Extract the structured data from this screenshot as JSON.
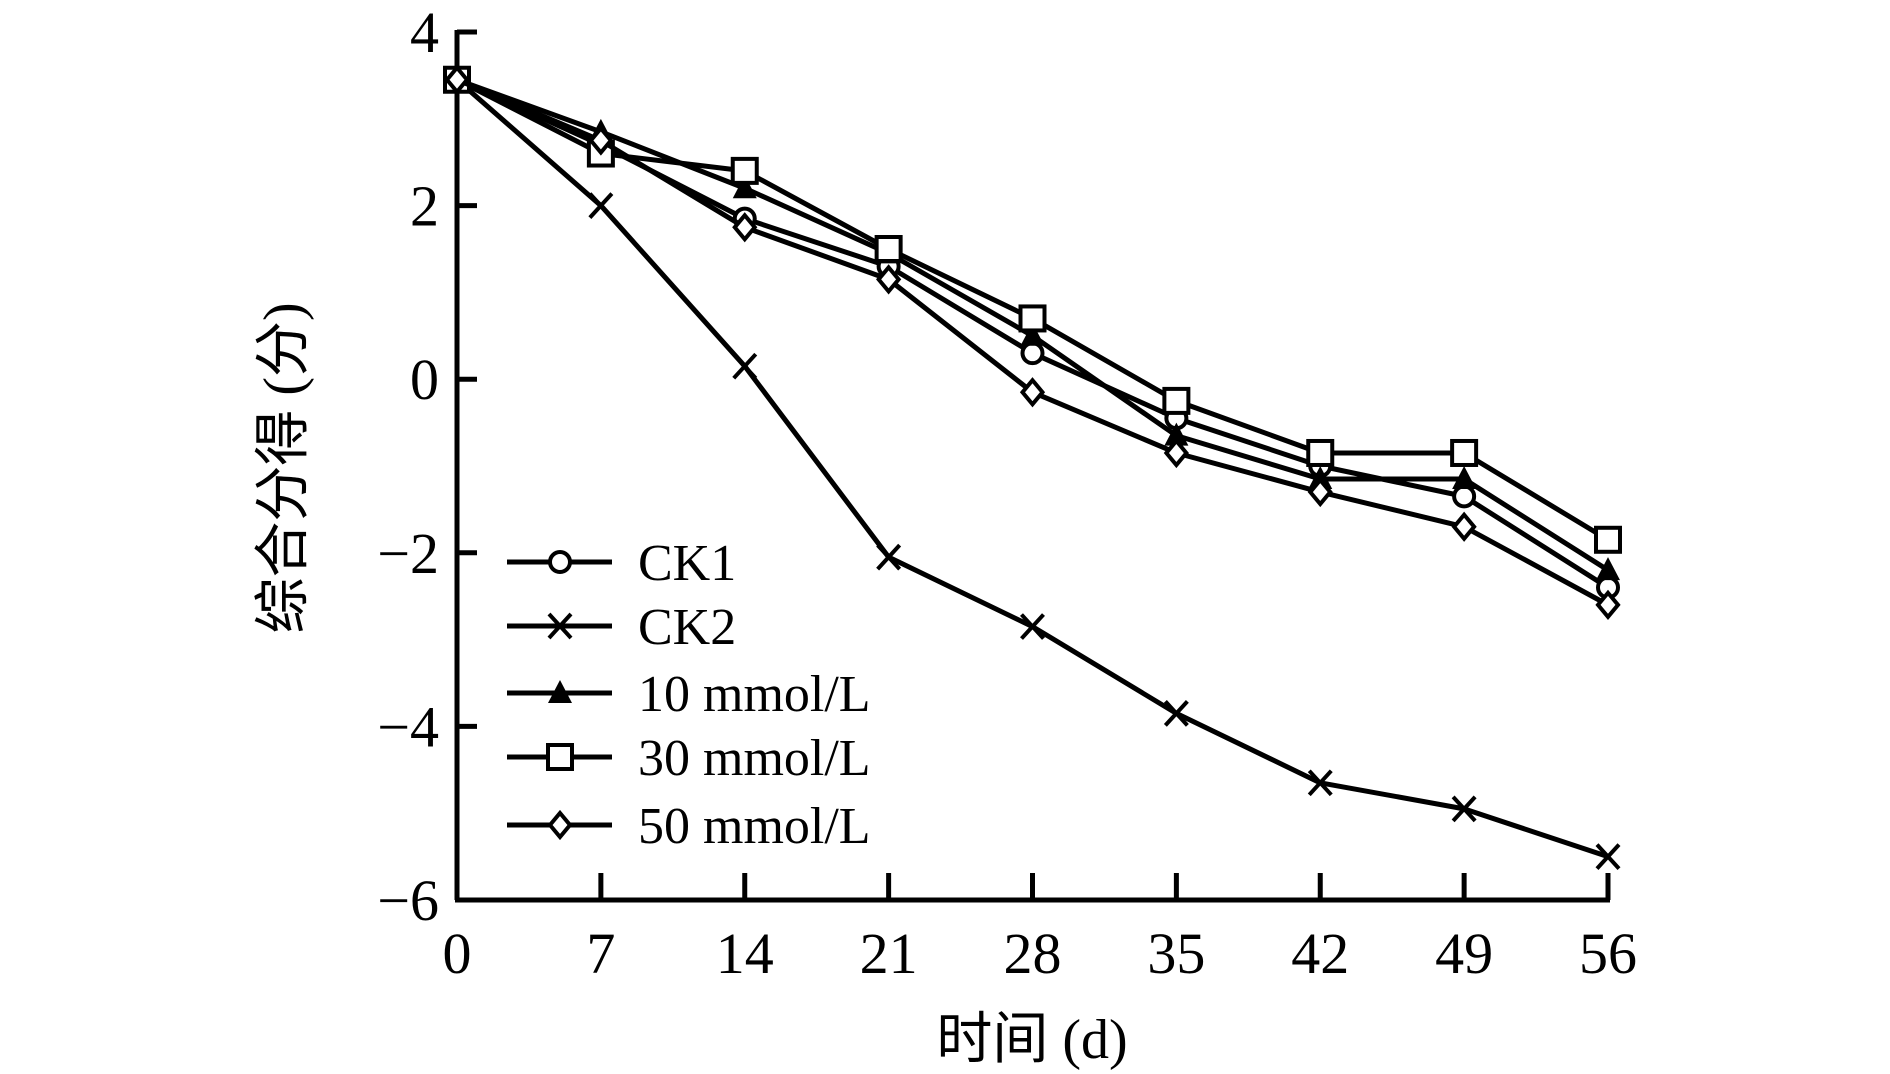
{
  "chart_data": {
    "type": "line",
    "title": "",
    "xlabel": "时间 (d)",
    "ylabel": "综合分得 (分)",
    "x": [
      0,
      7,
      14,
      21,
      28,
      35,
      42,
      49,
      56
    ],
    "xlim": [
      0,
      56
    ],
    "ylim": [
      -6,
      4
    ],
    "xticks": [
      0,
      7,
      14,
      21,
      28,
      35,
      42,
      49,
      56
    ],
    "xtick_labels": [
      "0",
      "7",
      "14",
      "21",
      "28",
      "35",
      "42",
      "49",
      "56"
    ],
    "yticks": [
      4,
      2,
      0,
      -2,
      -4,
      -6
    ],
    "ytick_labels": [
      "4",
      "2",
      "0",
      "−2",
      "−4",
      "−6"
    ],
    "grid": false,
    "legend_position": "bottom-left",
    "series": [
      {
        "name": "CK1",
        "marker": "circle-open",
        "values": [
          3.45,
          2.7,
          1.85,
          1.3,
          0.3,
          -0.45,
          -1.0,
          -1.35,
          -2.4
        ]
      },
      {
        "name": "CK2",
        "marker": "x",
        "values": [
          3.45,
          2.0,
          0.15,
          -2.05,
          -2.85,
          -3.85,
          -4.65,
          -4.95,
          -5.5
        ]
      },
      {
        "name": "10 mmol/L",
        "marker": "triangle-filled",
        "values": [
          3.45,
          2.85,
          2.2,
          1.45,
          0.5,
          -0.65,
          -1.15,
          -1.15,
          -2.2
        ]
      },
      {
        "name": "30 mmol/L",
        "marker": "square-open",
        "values": [
          3.45,
          2.6,
          2.4,
          1.5,
          0.7,
          -0.25,
          -0.85,
          -0.85,
          -1.85
        ]
      },
      {
        "name": "50 mmol/L",
        "marker": "diamond",
        "values": [
          3.45,
          2.75,
          1.75,
          1.15,
          -0.15,
          -0.85,
          -1.3,
          -1.7,
          -2.6
        ]
      }
    ],
    "colors": {
      "line": "#000000",
      "background": "#ffffff"
    }
  }
}
